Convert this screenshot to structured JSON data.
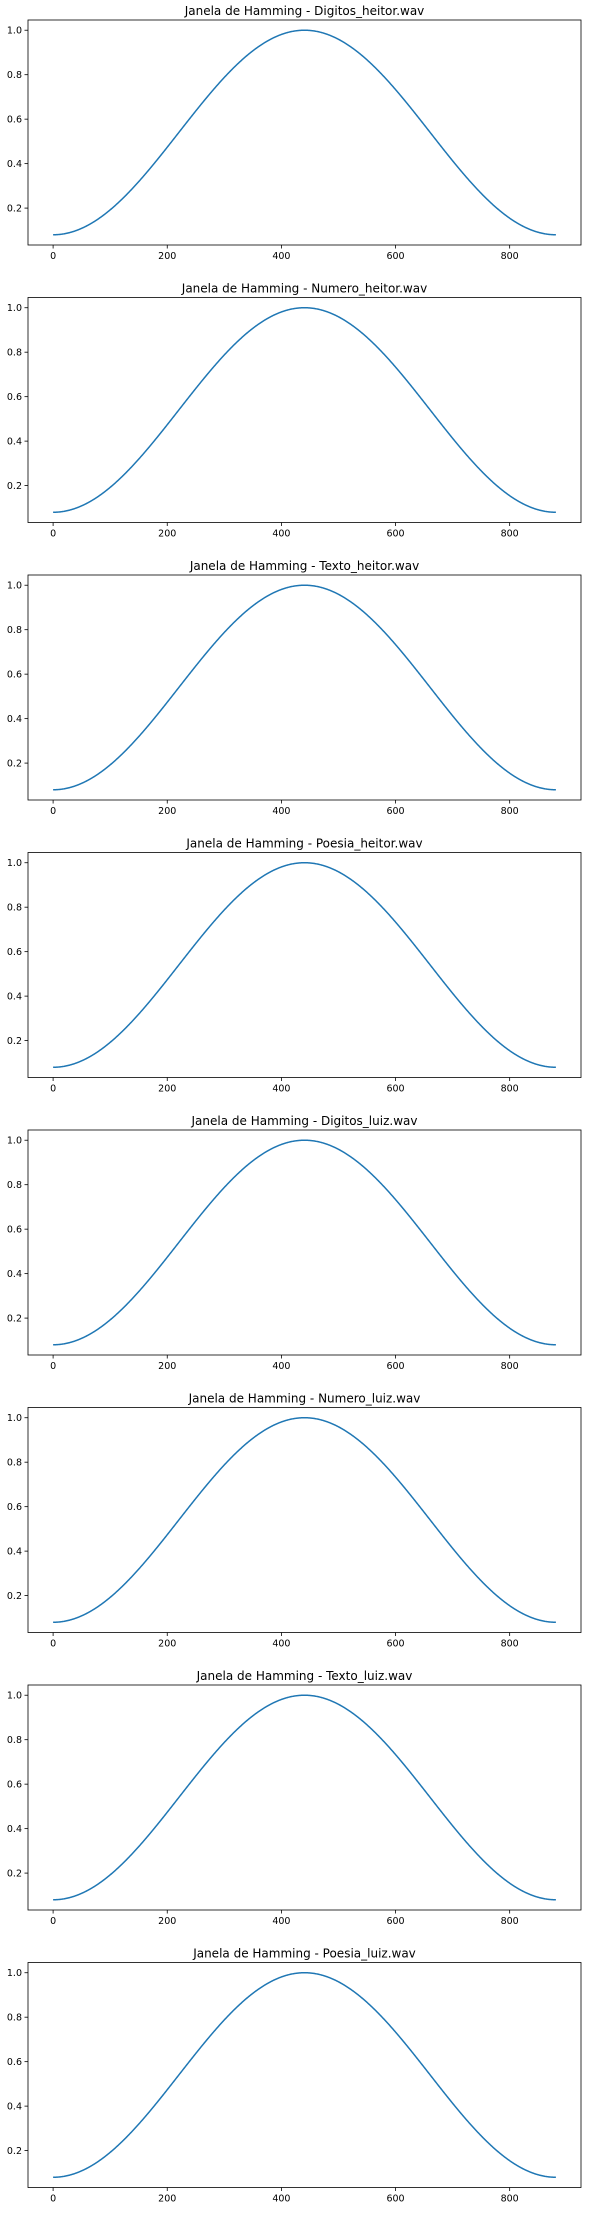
{
  "figure": {
    "background": "#ffffff",
    "line_color": "#1f77b4"
  },
  "chart_data": [
    {
      "type": "line",
      "title": "Janela de Hamming - Digitos_heitor.wav",
      "xlabel": "",
      "ylabel": "",
      "window": "hamming",
      "n_samples": 882,
      "x": [
        0,
        88,
        176,
        264,
        352,
        440,
        528,
        616,
        704,
        792,
        881
      ],
      "y": [
        0.08,
        0.167,
        0.398,
        0.682,
        0.912,
        1.0,
        0.913,
        0.684,
        0.4,
        0.169,
        0.08
      ],
      "xticks": [
        0,
        200,
        400,
        600,
        800
      ],
      "yticks": [
        0.2,
        0.4,
        0.6,
        0.8,
        1.0
      ],
      "xlim": [
        -44,
        925
      ],
      "ylim": [
        0.034,
        1.046
      ],
      "grid": false
    },
    {
      "type": "line",
      "title": "Janela de Hamming - Numero_heitor.wav",
      "xlabel": "",
      "ylabel": "",
      "window": "hamming",
      "n_samples": 882,
      "x": [
        0,
        88,
        176,
        264,
        352,
        440,
        528,
        616,
        704,
        792,
        881
      ],
      "y": [
        0.08,
        0.167,
        0.398,
        0.682,
        0.912,
        1.0,
        0.913,
        0.684,
        0.4,
        0.169,
        0.08
      ],
      "xticks": [
        0,
        200,
        400,
        600,
        800
      ],
      "yticks": [
        0.2,
        0.4,
        0.6,
        0.8,
        1.0
      ],
      "xlim": [
        -44,
        925
      ],
      "ylim": [
        0.034,
        1.046
      ],
      "grid": false
    },
    {
      "type": "line",
      "title": "Janela de Hamming - Texto_heitor.wav",
      "xlabel": "",
      "ylabel": "",
      "window": "hamming",
      "n_samples": 882,
      "x": [
        0,
        88,
        176,
        264,
        352,
        440,
        528,
        616,
        704,
        792,
        881
      ],
      "y": [
        0.08,
        0.167,
        0.398,
        0.682,
        0.912,
        1.0,
        0.913,
        0.684,
        0.4,
        0.169,
        0.08
      ],
      "xticks": [
        0,
        200,
        400,
        600,
        800
      ],
      "yticks": [
        0.2,
        0.4,
        0.6,
        0.8,
        1.0
      ],
      "xlim": [
        -44,
        925
      ],
      "ylim": [
        0.034,
        1.046
      ],
      "grid": false
    },
    {
      "type": "line",
      "title": "Janela de Hamming - Poesia_heitor.wav",
      "xlabel": "",
      "ylabel": "",
      "window": "hamming",
      "n_samples": 882,
      "x": [
        0,
        88,
        176,
        264,
        352,
        440,
        528,
        616,
        704,
        792,
        881
      ],
      "y": [
        0.08,
        0.167,
        0.398,
        0.682,
        0.912,
        1.0,
        0.913,
        0.684,
        0.4,
        0.169,
        0.08
      ],
      "xticks": [
        0,
        200,
        400,
        600,
        800
      ],
      "yticks": [
        0.2,
        0.4,
        0.6,
        0.8,
        1.0
      ],
      "xlim": [
        -44,
        925
      ],
      "ylim": [
        0.034,
        1.046
      ],
      "grid": false
    },
    {
      "type": "line",
      "title": "Janela de Hamming - Digitos_luiz.wav",
      "xlabel": "",
      "ylabel": "",
      "window": "hamming",
      "n_samples": 882,
      "x": [
        0,
        88,
        176,
        264,
        352,
        440,
        528,
        616,
        704,
        792,
        881
      ],
      "y": [
        0.08,
        0.167,
        0.398,
        0.682,
        0.912,
        1.0,
        0.913,
        0.684,
        0.4,
        0.169,
        0.08
      ],
      "xticks": [
        0,
        200,
        400,
        600,
        800
      ],
      "yticks": [
        0.2,
        0.4,
        0.6,
        0.8,
        1.0
      ],
      "xlim": [
        -44,
        925
      ],
      "ylim": [
        0.034,
        1.046
      ],
      "grid": false
    },
    {
      "type": "line",
      "title": "Janela de Hamming - Numero_luiz.wav",
      "xlabel": "",
      "ylabel": "",
      "window": "hamming",
      "n_samples": 882,
      "x": [
        0,
        88,
        176,
        264,
        352,
        440,
        528,
        616,
        704,
        792,
        881
      ],
      "y": [
        0.08,
        0.167,
        0.398,
        0.682,
        0.912,
        1.0,
        0.913,
        0.684,
        0.4,
        0.169,
        0.08
      ],
      "xticks": [
        0,
        200,
        400,
        600,
        800
      ],
      "yticks": [
        0.2,
        0.4,
        0.6,
        0.8,
        1.0
      ],
      "xlim": [
        -44,
        925
      ],
      "ylim": [
        0.034,
        1.046
      ],
      "grid": false
    },
    {
      "type": "line",
      "title": "Janela de Hamming - Texto_luiz.wav",
      "xlabel": "",
      "ylabel": "",
      "window": "hamming",
      "n_samples": 882,
      "x": [
        0,
        88,
        176,
        264,
        352,
        440,
        528,
        616,
        704,
        792,
        881
      ],
      "y": [
        0.08,
        0.167,
        0.398,
        0.682,
        0.912,
        1.0,
        0.913,
        0.684,
        0.4,
        0.169,
        0.08
      ],
      "xticks": [
        0,
        200,
        400,
        600,
        800
      ],
      "yticks": [
        0.2,
        0.4,
        0.6,
        0.8,
        1.0
      ],
      "xlim": [
        -44,
        925
      ],
      "ylim": [
        0.034,
        1.046
      ],
      "grid": false
    },
    {
      "type": "line",
      "title": "Janela de Hamming - Poesia_luiz.wav",
      "xlabel": "",
      "ylabel": "",
      "window": "hamming",
      "n_samples": 882,
      "x": [
        0,
        88,
        176,
        264,
        352,
        440,
        528,
        616,
        704,
        792,
        881
      ],
      "y": [
        0.08,
        0.167,
        0.398,
        0.682,
        0.912,
        1.0,
        0.913,
        0.684,
        0.4,
        0.169,
        0.08
      ],
      "xticks": [
        0,
        200,
        400,
        600,
        800
      ],
      "yticks": [
        0.2,
        0.4,
        0.6,
        0.8,
        1.0
      ],
      "xlim": [
        -44,
        925
      ],
      "ylim": [
        0.034,
        1.046
      ],
      "grid": false
    }
  ]
}
